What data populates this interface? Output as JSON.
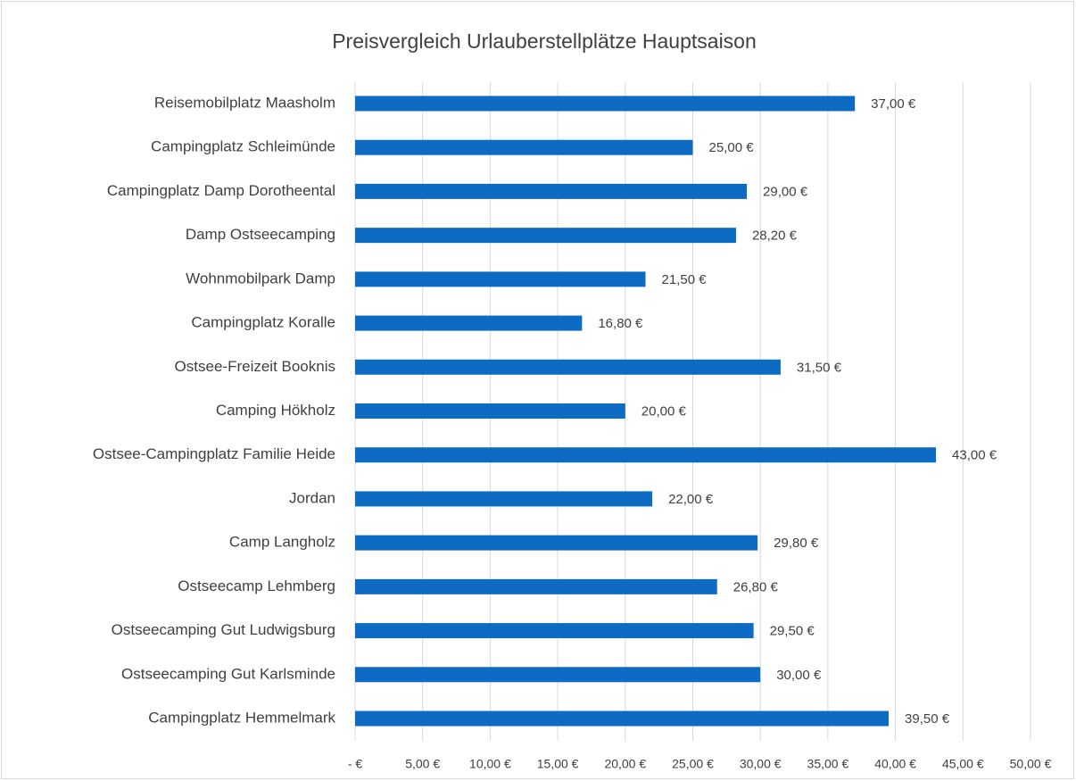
{
  "chart_data": {
    "type": "bar",
    "orientation": "horizontal",
    "title": "Preisvergleich Urlauberstellplätze Hauptsaison",
    "categories": [
      "Reisemobilplatz Maasholm",
      "Campingplatz Schleimünde",
      "Campingplatz Damp Dorotheental",
      "Damp Ostseecamping",
      "Wohnmobilpark Damp",
      "Campingplatz Koralle",
      "Ostsee-Freizeit Booknis",
      "Camping Hökholz",
      "Ostsee-Campingplatz Familie Heide",
      "Jordan",
      "Camp Langholz",
      "Ostseecamp Lehmberg",
      "Ostseecamping Gut Ludwigsburg",
      "Ostseecamping Gut Karlsminde",
      "Campingplatz Hemmelmark"
    ],
    "values": [
      37,
      25,
      29,
      28.2,
      21.5,
      16.8,
      31.5,
      20,
      43,
      22,
      29.8,
      26.8,
      29.5,
      30,
      39.5
    ],
    "value_labels": [
      "37,00 €",
      "25,00 €",
      "29,00 €",
      "28,20 €",
      "21,50 €",
      "16,80 €",
      "31,50 €",
      "20,00 €",
      "43,00 €",
      "22,00 €",
      "29,80 €",
      "26,80 €",
      "29,50 €",
      "30,00 €",
      "39,50 €"
    ],
    "color": "#0e6bc4",
    "xlim": [
      0,
      50
    ],
    "xticks": [
      {
        "value": 0,
        "label": "- €"
      },
      {
        "value": 5,
        "label": "5,00 €"
      },
      {
        "value": 10,
        "label": "10,00 €"
      },
      {
        "value": 15,
        "label": "15,00 €"
      },
      {
        "value": 20,
        "label": "20,00 €"
      },
      {
        "value": 25,
        "label": "25,00 €"
      },
      {
        "value": 30,
        "label": "30,00 €"
      },
      {
        "value": 35,
        "label": "35,00 €"
      },
      {
        "value": 40,
        "label": "40,00 €"
      },
      {
        "value": 45,
        "label": "45,00 €"
      },
      {
        "value": 50,
        "label": "50,00 €"
      }
    ],
    "grid": true
  }
}
